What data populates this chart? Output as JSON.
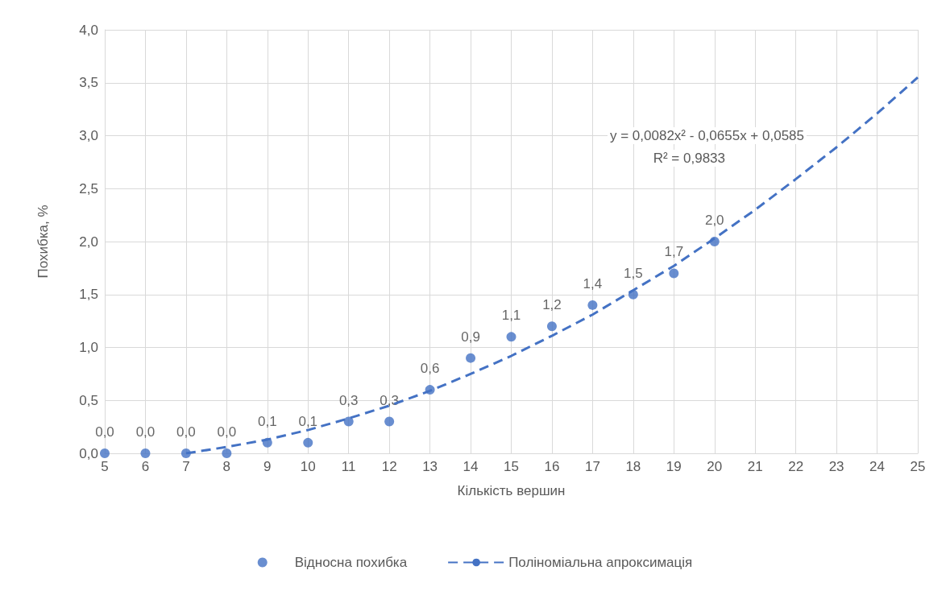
{
  "chart_data": {
    "type": "scatter",
    "xlabel": "Кількість вершин",
    "ylabel": "Похибка, %",
    "xlim": [
      5,
      25
    ],
    "xticks": [
      5,
      6,
      7,
      8,
      9,
      10,
      11,
      12,
      13,
      14,
      15,
      16,
      17,
      18,
      19,
      20,
      21,
      22,
      23,
      24,
      25
    ],
    "ylim": [
      0,
      4
    ],
    "yticks": [
      {
        "value": 0,
        "label": "0,0"
      },
      {
        "value": 0.5,
        "label": "0,5"
      },
      {
        "value": 1,
        "label": "1,0"
      },
      {
        "value": 1.5,
        "label": "1,5"
      },
      {
        "value": 2,
        "label": "2,0"
      },
      {
        "value": 2.5,
        "label": "2,5"
      },
      {
        "value": 3,
        "label": "3,0"
      },
      {
        "value": 3.5,
        "label": "3,5"
      },
      {
        "value": 4,
        "label": "4,0"
      }
    ],
    "grid": true,
    "legend": "bottom",
    "series": [
      {
        "name": "Відносна похибка",
        "marker": "circle",
        "color": "#4472c4",
        "x": [
          5,
          6,
          7,
          8,
          9,
          10,
          11,
          12,
          13,
          14,
          15,
          16,
          17,
          18,
          19,
          20
        ],
        "values": [
          0.0,
          0.0,
          0.0,
          0.0,
          0.1,
          0.1,
          0.3,
          0.3,
          0.6,
          0.9,
          1.1,
          1.2,
          1.4,
          1.5,
          1.7,
          2.0
        ],
        "value_labels": [
          "0,0",
          "0,0",
          "0,0",
          "0,0",
          "0,1",
          "0,1",
          "0,3",
          "0,3",
          "0,6",
          "0,9",
          "1,1",
          "1,2",
          "1,4",
          "1,5",
          "1,7",
          "2,0"
        ]
      },
      {
        "name": "Поліноміальна апроксимація",
        "type": "line",
        "marker": "none",
        "line_style": "dashed",
        "color": "#4472c4",
        "x": [
          7,
          8,
          9,
          10,
          11,
          12,
          13,
          14,
          15,
          16,
          17,
          18,
          19,
          20,
          21,
          22,
          23,
          24,
          25
        ],
        "values": [
          0.0,
          0.06,
          0.13,
          0.22,
          0.33,
          0.45,
          0.59,
          0.75,
          0.92,
          1.11,
          1.31,
          1.54,
          1.77,
          2.03,
          2.3,
          2.59,
          2.89,
          3.21,
          3.55
        ]
      }
    ],
    "annotations": [
      "y = 0,0082x² - 0,0655x + 0,0585",
      "R² = 0,9833"
    ]
  }
}
